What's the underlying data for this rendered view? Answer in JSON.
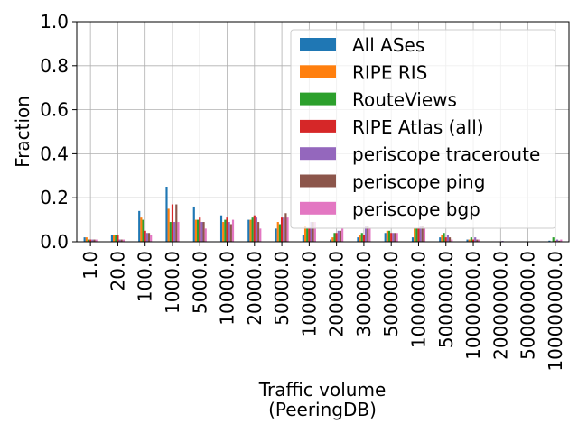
{
  "chart_data": {
    "type": "bar",
    "xlabel_line1": "Traffic volume",
    "xlabel_line2": "(PeeringDB)",
    "ylabel": "Fraction",
    "ylim": [
      0,
      1.0
    ],
    "yticks": [
      "0.0",
      "0.2",
      "0.4",
      "0.6",
      "0.8",
      "1.0"
    ],
    "grid": true,
    "legend_position": "top-right",
    "categories": [
      "1.0",
      "20.0",
      "100.0",
      "1000.0",
      "5000.0",
      "10000.0",
      "20000.0",
      "50000.0",
      "100000.0",
      "200000.0",
      "300000.0",
      "500000.0",
      "1000000.0",
      "5000000.0",
      "10000000.0",
      "20000000.0",
      "50000000.0",
      "100000000.0"
    ],
    "series": [
      {
        "name": "All ASes",
        "color": "#1f77b4",
        "values": [
          0.02,
          0.03,
          0.14,
          0.25,
          0.16,
          0.12,
          0.1,
          0.06,
          0.03,
          0.01,
          0.02,
          0.04,
          0.02,
          0.02,
          0.01,
          0.002,
          0.001,
          0.005
        ]
      },
      {
        "name": "RIPE RIS",
        "color": "#ff7f0e",
        "values": [
          0.02,
          0.03,
          0.11,
          0.15,
          0.1,
          0.09,
          0.1,
          0.09,
          0.07,
          0.02,
          0.03,
          0.05,
          0.06,
          0.03,
          0.01,
          0.002,
          0.001,
          0.002
        ]
      },
      {
        "name": "RouteViews",
        "color": "#2ca02c",
        "values": [
          0.01,
          0.03,
          0.1,
          0.09,
          0.1,
          0.1,
          0.11,
          0.08,
          0.06,
          0.04,
          0.04,
          0.05,
          0.06,
          0.04,
          0.02,
          0.002,
          0.001,
          0.02
        ]
      },
      {
        "name": "RIPE Atlas (all)",
        "color": "#d62728",
        "values": [
          0.01,
          0.03,
          0.05,
          0.17,
          0.11,
          0.11,
          0.12,
          0.11,
          0.06,
          0.04,
          0.03,
          0.04,
          0.06,
          0.02,
          0.01,
          0.002,
          0.001,
          0.005
        ]
      },
      {
        "name": "periscope traceroute",
        "color": "#9467bd",
        "values": [
          0.01,
          0.01,
          0.04,
          0.09,
          0.09,
          0.09,
          0.11,
          0.11,
          0.09,
          0.05,
          0.07,
          0.04,
          0.07,
          0.03,
          0.02,
          0.004,
          0.001,
          0.01
        ]
      },
      {
        "name": "periscope ping",
        "color": "#8c564b",
        "values": [
          0.01,
          0.01,
          0.04,
          0.17,
          0.09,
          0.08,
          0.09,
          0.13,
          0.09,
          0.05,
          0.07,
          0.04,
          0.07,
          0.02,
          0.01,
          0.002,
          0.001,
          0.005
        ]
      },
      {
        "name": "periscope bgp",
        "color": "#e377c2",
        "values": [
          0.01,
          0.01,
          0.03,
          0.09,
          0.06,
          0.1,
          0.06,
          0.11,
          0.09,
          0.06,
          0.06,
          0.04,
          0.06,
          0.01,
          0.01,
          0.002,
          0.001,
          0.01
        ]
      }
    ]
  }
}
